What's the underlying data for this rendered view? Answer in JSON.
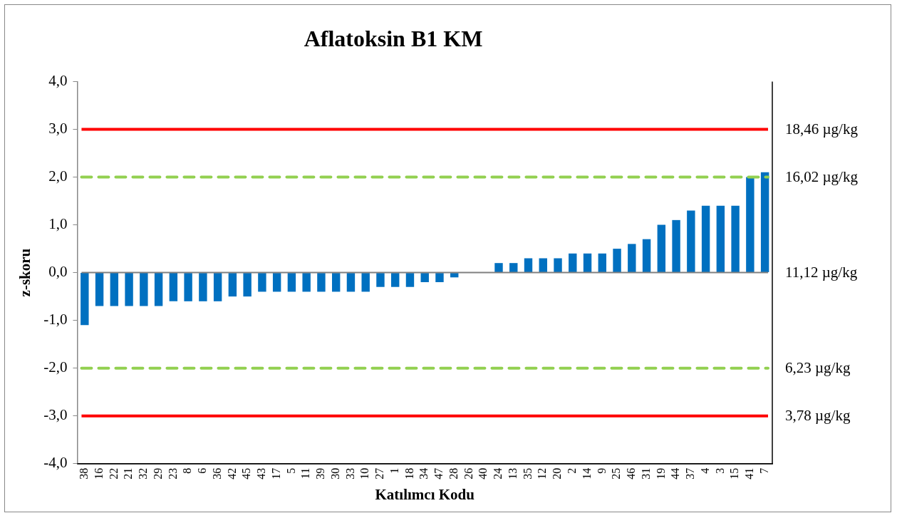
{
  "chart_data": {
    "type": "bar",
    "title": "Aflatoksin B1 KM",
    "xlabel": "Katılımcı Kodu",
    "ylabel": "z-skoru",
    "categories": [
      "38",
      "16",
      "22",
      "21",
      "32",
      "29",
      "23",
      "8",
      "6",
      "36",
      "42",
      "45",
      "43",
      "17",
      "5",
      "11",
      "39",
      "30",
      "33",
      "10",
      "27",
      "1",
      "18",
      "34",
      "47",
      "28",
      "26",
      "40",
      "24",
      "13",
      "35",
      "12",
      "20",
      "2",
      "14",
      "9",
      "25",
      "46",
      "31",
      "19",
      "44",
      "37",
      "4",
      "3",
      "15",
      "41",
      "7"
    ],
    "values": [
      -1.1,
      -0.7,
      -0.7,
      -0.7,
      -0.7,
      -0.7,
      -0.6,
      -0.6,
      -0.6,
      -0.6,
      -0.5,
      -0.5,
      -0.4,
      -0.4,
      -0.4,
      -0.4,
      -0.4,
      -0.4,
      -0.4,
      -0.4,
      -0.3,
      -0.3,
      -0.3,
      -0.2,
      -0.2,
      -0.1,
      0,
      0,
      0.2,
      0.2,
      0.3,
      0.3,
      0.3,
      0.4,
      0.4,
      0.4,
      0.5,
      0.6,
      0.7,
      1.0,
      1.1,
      1.3,
      1.4,
      1.4,
      1.4,
      2.0,
      2.1
    ],
    "color": "#0070c0",
    "ylim": [
      -4,
      4
    ],
    "yticks": [
      {
        "value": -4,
        "label": "-4,0"
      },
      {
        "value": -3,
        "label": "-3,0"
      },
      {
        "value": -2,
        "label": "-2,0"
      },
      {
        "value": -1,
        "label": "-1,0"
      },
      {
        "value": 0,
        "label": "0,0"
      },
      {
        "value": 1,
        "label": "1,0"
      },
      {
        "value": 2,
        "label": "2,0"
      },
      {
        "value": 3,
        "label": "3,0"
      },
      {
        "value": 4,
        "label": "4,0"
      }
    ],
    "ref_lines": [
      {
        "axis": "y",
        "value": 3,
        "label": "18,46 µg/kg",
        "color": "#ff0000",
        "line_style": "solid"
      },
      {
        "axis": "y",
        "value": 2,
        "label": "16,02 µg/kg",
        "color": "#92d050",
        "line_style": "dashed"
      },
      {
        "axis": "y",
        "value": 0,
        "label": "11,12 µg/kg",
        "color": "#808080",
        "line_style": "solid"
      },
      {
        "axis": "y",
        "value": -2,
        "label": "6,23 µg/kg",
        "color": "#92d050",
        "line_style": "dashed"
      },
      {
        "axis": "y",
        "value": -3,
        "label": "3,78 µg/kg",
        "color": "#ff0000",
        "line_style": "solid"
      }
    ]
  }
}
